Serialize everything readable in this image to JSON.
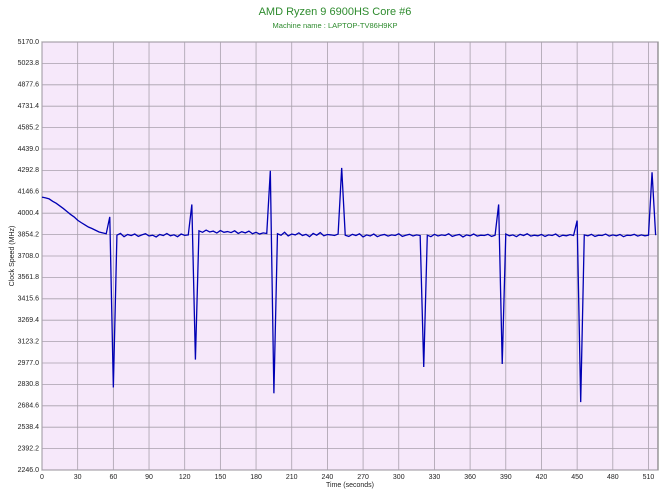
{
  "chart_data": {
    "type": "line",
    "title": "AMD Ryzen 9 6900HS Core #6",
    "subtitle": "Machine name : LAPTOP-TV86H9KP",
    "x_label": "Time (seconds)",
    "y_label": "Clock Speed (MHz)",
    "grid": true,
    "xlim": [
      0,
      518
    ],
    "xticks": [
      0,
      30,
      60,
      90,
      120,
      150,
      180,
      210,
      240,
      270,
      300,
      330,
      360,
      390,
      420,
      450,
      480,
      510
    ],
    "ylim": [
      2246,
      5170
    ],
    "yticks": [
      {
        "value": 2246,
        "label": "2246.0"
      },
      2392.2,
      2538.4,
      2684.6,
      2830.8,
      {
        "value": 2977,
        "label": "2977.0"
      },
      3123.2,
      3269.4,
      3415.6,
      3561.8,
      {
        "value": 3708,
        "label": "3708.0"
      },
      3854.2,
      4000.4,
      4146.6,
      4292.8,
      {
        "value": 4439,
        "label": "4439.0"
      },
      4585.2,
      4731.4,
      4877.6,
      5023.8,
      {
        "value": 5170,
        "label": "5170.0"
      }
    ],
    "x": [
      0,
      3,
      6,
      9,
      12,
      15,
      18,
      21,
      24,
      27,
      30,
      33,
      36,
      39,
      42,
      45,
      48,
      51,
      54,
      57,
      60,
      63,
      66,
      69,
      72,
      75,
      78,
      81,
      84,
      87,
      90,
      93,
      96,
      99,
      102,
      105,
      108,
      111,
      114,
      117,
      120,
      123,
      126,
      129,
      132,
      135,
      138,
      141,
      144,
      147,
      150,
      153,
      156,
      159,
      162,
      165,
      168,
      171,
      174,
      177,
      180,
      183,
      186,
      189,
      192,
      195,
      198,
      201,
      204,
      207,
      210,
      213,
      216,
      219,
      222,
      225,
      228,
      231,
      234,
      237,
      240,
      243,
      246,
      249,
      252,
      255,
      258,
      261,
      264,
      267,
      270,
      273,
      276,
      279,
      282,
      285,
      288,
      291,
      294,
      297,
      300,
      303,
      306,
      309,
      312,
      315,
      318,
      321,
      324,
      327,
      330,
      333,
      336,
      339,
      342,
      345,
      348,
      351,
      354,
      357,
      360,
      363,
      366,
      369,
      372,
      375,
      378,
      381,
      384,
      387,
      390,
      393,
      396,
      399,
      402,
      405,
      408,
      411,
      414,
      417,
      420,
      423,
      426,
      429,
      432,
      435,
      438,
      441,
      444,
      447,
      450,
      453,
      456,
      459,
      462,
      465,
      468,
      471,
      474,
      477,
      480,
      483,
      486,
      489,
      492,
      495,
      498,
      501,
      504,
      507,
      510,
      513,
      516
    ],
    "series": [
      {
        "color": "#0000b4",
        "values": [
          4110,
          4105,
          4098,
          4082,
          4068,
          4050,
          4032,
          4012,
          3992,
          3975,
          3952,
          3936,
          3921,
          3906,
          3896,
          3884,
          3872,
          3866,
          3860,
          3975,
          2810,
          3850,
          3862,
          3840,
          3855,
          3848,
          3858,
          3842,
          3852,
          3860,
          3845,
          3850,
          3838,
          3855,
          3848,
          3862,
          3846,
          3853,
          3840,
          3858,
          3849,
          3852,
          4060,
          3000,
          3880,
          3870,
          3885,
          3872,
          3878,
          3865,
          3882,
          3870,
          3875,
          3868,
          3880,
          3862,
          3874,
          3866,
          3878,
          3860,
          3870,
          3858,
          3866,
          3862,
          4290,
          2770,
          3860,
          3850,
          3870,
          3845,
          3858,
          3852,
          3866,
          3848,
          3856,
          3840,
          3862,
          3850,
          3868,
          3846,
          3855,
          3852,
          3848,
          3858,
          4310,
          3850,
          3842,
          3856,
          3848,
          3860,
          3838,
          3852,
          3845,
          3858,
          3840,
          3850,
          3855,
          3844,
          3852,
          3848,
          3860,
          3842,
          3850,
          3856,
          3845,
          3852,
          3848,
          2950,
          3850,
          3840,
          3856,
          3845,
          3852,
          3848,
          3860,
          3842,
          3850,
          3855,
          3838,
          3852,
          3846,
          3858,
          3844,
          3850,
          3848,
          3856,
          3842,
          3850,
          4060,
          2970,
          3858,
          3846,
          3852,
          3840,
          3856,
          3848,
          3860,
          3844,
          3850,
          3846,
          3855,
          3842,
          3852,
          3848,
          3858,
          3840,
          3850,
          3846,
          3854,
          3848,
          3950,
          2710,
          3852,
          3846,
          3856,
          3842,
          3850,
          3848,
          3858,
          3844,
          3852,
          3846,
          3855,
          3840,
          3850,
          3848,
          3856,
          3844,
          3852,
          3846,
          3850,
          4280,
          3850
        ]
      }
    ]
  }
}
